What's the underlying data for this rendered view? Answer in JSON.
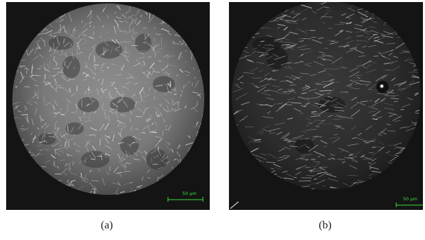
{
  "figure": {
    "panels": [
      {
        "id": "a",
        "caption": "(a)",
        "scale_bar_label": "50 μm",
        "overall_tone": "bright, dense fine fibrous texture with scattered dark patches",
        "seed": 17
      },
      {
        "id": "b",
        "caption": "(b)",
        "scale_bar_label": "50 μm",
        "overall_tone": "darker, sparse bright fibrous strands with a bright spot at right",
        "seed": 41
      }
    ],
    "colors": {
      "frame": "#141414",
      "scale_bar": "#3ce13c",
      "caption": "#1a1a1a"
    }
  }
}
